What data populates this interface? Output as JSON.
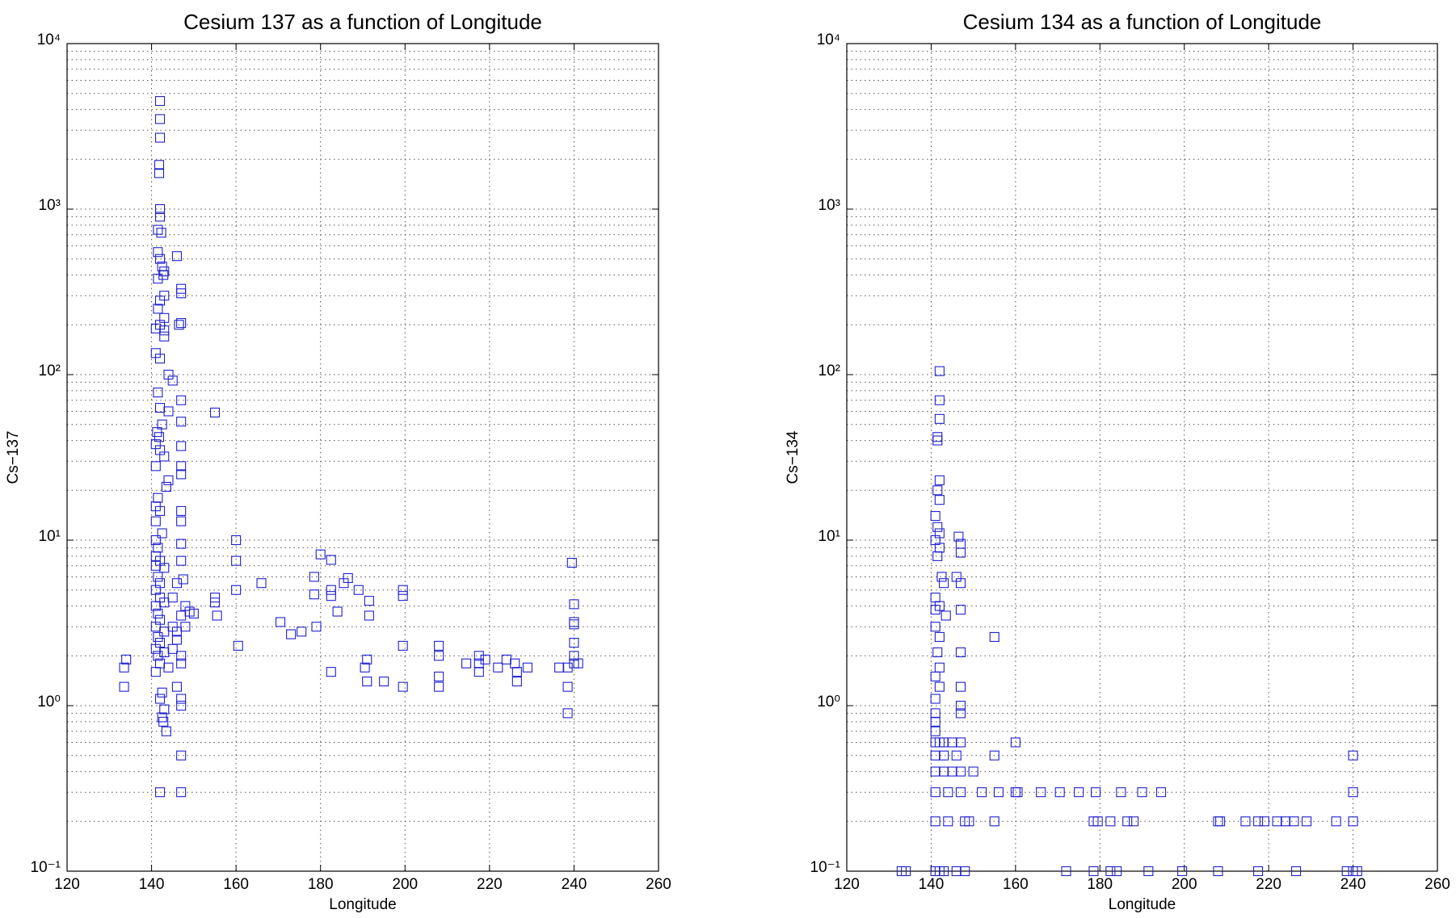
{
  "chart_data": [
    {
      "type": "scatter",
      "title": "Cesium 137 as a function of Longitude",
      "xlabel": "Longitude",
      "ylabel": "Cs−137",
      "color": "#2020d0",
      "log_y": true,
      "grid": true,
      "xlim": [
        120,
        260
      ],
      "xticks": [
        120,
        140,
        160,
        180,
        200,
        220,
        240,
        260
      ],
      "ylim": [
        0.1,
        10000
      ],
      "yticks": [
        {
          "value": 0.1,
          "label": "10⁻¹"
        },
        {
          "value": 1,
          "label": "10⁰"
        },
        {
          "value": 10,
          "label": "10¹"
        },
        {
          "value": 100,
          "label": "10²"
        },
        {
          "value": 1000,
          "label": "10³"
        },
        {
          "value": 10000,
          "label": "10⁴"
        }
      ],
      "x": [
        142,
        142,
        142,
        141.8,
        141.8,
        142,
        142,
        141.5,
        142.3,
        141.5,
        142,
        142.5,
        143,
        142.8,
        141.5,
        143,
        142,
        141.5,
        143,
        142,
        141,
        143,
        141,
        142,
        143,
        144,
        145,
        144,
        141.5,
        142,
        142.5,
        141.3,
        141.8,
        141,
        142,
        143,
        141,
        144,
        143.5,
        141.5,
        141,
        142,
        141,
        142.5,
        141,
        141.5,
        141,
        142,
        141,
        143,
        141.5,
        142,
        141,
        142,
        143,
        141,
        141.5,
        142,
        141,
        143,
        141.5,
        142,
        141,
        143,
        141.5,
        142,
        144,
        141,
        142.5,
        142,
        143,
        142.5,
        142.8,
        143.5,
        142,
        147,
        147,
        147,
        147,
        146,
        146,
        147,
        147,
        147,
        146.5,
        147,
        147,
        147,
        147,
        147,
        147,
        147,
        147,
        147,
        146,
        147.5,
        145,
        148,
        147,
        149,
        150,
        148,
        146,
        147,
        147,
        145,
        145,
        146,
        133.5,
        134,
        133.5,
        155,
        155,
        155,
        155.5,
        160,
        160,
        160,
        160.5,
        166,
        170.5,
        173,
        175.5,
        178.5,
        178.5,
        179,
        180,
        182.5,
        182.5,
        182.5,
        182.5,
        184,
        185.5,
        186.5,
        189,
        190.5,
        191,
        191,
        191.5,
        191.5,
        195,
        199.5,
        199.5,
        199.5,
        199.5,
        208,
        208,
        208,
        208,
        214.5,
        217.5,
        217.5,
        217.5,
        219,
        222,
        224,
        226,
        226.5,
        226.5,
        229,
        236.5,
        238.5,
        238.5,
        238.5,
        239.5,
        240,
        240,
        240,
        240,
        240,
        240,
        241
      ],
      "values": [
        4500,
        3500,
        2700,
        1850,
        1650,
        1000,
        900,
        750,
        720,
        550,
        500,
        450,
        420,
        400,
        380,
        300,
        280,
        250,
        220,
        200,
        190,
        185,
        135,
        125,
        170,
        100,
        92,
        60,
        78,
        63,
        50,
        45,
        42,
        38,
        35,
        32,
        28,
        23,
        21,
        18,
        16,
        15,
        13,
        11,
        10,
        9,
        8,
        7.5,
        7,
        6.8,
        6,
        5.5,
        5,
        4.5,
        4.2,
        4,
        3.6,
        3.3,
        3,
        2.8,
        2.6,
        2.4,
        2.2,
        2.1,
        2,
        1.8,
        1.7,
        1.6,
        1.2,
        1.1,
        0.95,
        0.85,
        0.8,
        0.7,
        0.3,
        0.3,
        0.5,
        1,
        1.1,
        1.3,
        520,
        330,
        310,
        205,
        200,
        70,
        52,
        37,
        28,
        25,
        15,
        13,
        9.5,
        7.5,
        5.5,
        5.8,
        4.5,
        4,
        3.5,
        3.7,
        3.6,
        3,
        2.5,
        2,
        1.8,
        2.2,
        3,
        2.8,
        1.7,
        1.9,
        1.3,
        59,
        4.5,
        4.2,
        3.5,
        10,
        7.5,
        5,
        2.3,
        5.5,
        3.2,
        2.7,
        2.8,
        6,
        4.7,
        3,
        8.2,
        7.6,
        5,
        4.6,
        1.6,
        3.7,
        5.5,
        5.9,
        5,
        1.7,
        1.9,
        1.4,
        4.3,
        3.5,
        1.4,
        5,
        4.6,
        2.3,
        1.3,
        2.3,
        2,
        1.5,
        1.3,
        1.8,
        2,
        1.8,
        1.6,
        1.9,
        1.7,
        1.9,
        1.8,
        1.6,
        1.4,
        1.7,
        1.7,
        1.7,
        1.3,
        0.9,
        7.3,
        4.1,
        3.2,
        3.1,
        2.4,
        2,
        1.8,
        1.8
      ]
    },
    {
      "type": "scatter",
      "title": "Cesium 134 as a function of Longitude",
      "xlabel": "Longitude",
      "ylabel": "Cs−134",
      "color": "#2020d0",
      "log_y": true,
      "grid": true,
      "xlim": [
        120,
        260
      ],
      "xticks": [
        120,
        140,
        160,
        180,
        200,
        220,
        240,
        260
      ],
      "ylim": [
        0.1,
        10000
      ],
      "yticks": [
        {
          "value": 0.1,
          "label": "10⁻¹"
        },
        {
          "value": 1,
          "label": "10⁰"
        },
        {
          "value": 10,
          "label": "10¹"
        },
        {
          "value": 100,
          "label": "10²"
        },
        {
          "value": 1000,
          "label": "10³"
        },
        {
          "value": 10000,
          "label": "10⁴"
        }
      ],
      "x": [
        142,
        142,
        142,
        141.5,
        141.5,
        142,
        141.5,
        142,
        141,
        141.5,
        142,
        141,
        142,
        141.5,
        142.5,
        143,
        141,
        142,
        141,
        143.5,
        141,
        142,
        141.5,
        142,
        141,
        142,
        141,
        141,
        141,
        141,
        141,
        142,
        143,
        145,
        147,
        147,
        147,
        147,
        147,
        147,
        147,
        146.5,
        147,
        147,
        146,
        141,
        143,
        146,
        141,
        143,
        145,
        147,
        150,
        155,
        155,
        160,
        141,
        144,
        147,
        152,
        156,
        160,
        160.5,
        166,
        170.5,
        175,
        179,
        185,
        190,
        194.5,
        141,
        144,
        148,
        149,
        155,
        178.5,
        179.5,
        182.5,
        186.5,
        188,
        208,
        208.5,
        214.5,
        217.5,
        219,
        222,
        224,
        226,
        229,
        236,
        240,
        240,
        240,
        133,
        134,
        141,
        142,
        143,
        146,
        148,
        172,
        178.5,
        182.5,
        184,
        191.5,
        199.5,
        208,
        217.5,
        226.5,
        238.5,
        240,
        241
      ],
      "values": [
        105,
        70,
        54,
        42,
        40,
        23,
        20,
        17.5,
        14,
        12,
        11,
        10,
        9,
        8,
        6,
        5.5,
        4.5,
        4,
        3.8,
        3.5,
        3,
        2.6,
        2.1,
        1.7,
        1.5,
        1.3,
        1.1,
        0.9,
        0.8,
        0.7,
        0.6,
        0.6,
        0.6,
        0.6,
        0.6,
        0.9,
        1,
        1.3,
        2.1,
        3.8,
        5.5,
        10.5,
        9.5,
        8.4,
        6,
        0.5,
        0.5,
        0.5,
        0.4,
        0.4,
        0.4,
        0.4,
        0.4,
        0.5,
        2.6,
        0.6,
        0.3,
        0.3,
        0.3,
        0.3,
        0.3,
        0.3,
        0.3,
        0.3,
        0.3,
        0.3,
        0.3,
        0.3,
        0.3,
        0.3,
        0.2,
        0.2,
        0.2,
        0.2,
        0.2,
        0.2,
        0.2,
        0.2,
        0.2,
        0.2,
        0.2,
        0.2,
        0.2,
        0.2,
        0.2,
        0.2,
        0.2,
        0.2,
        0.2,
        0.2,
        0.2,
        0.3,
        0.5,
        0.1,
        0.1,
        0.1,
        0.1,
        0.1,
        0.1,
        0.1,
        0.1,
        0.1,
        0.1,
        0.1,
        0.1,
        0.1,
        0.1,
        0.1,
        0.1,
        0.1,
        0.1,
        0.1
      ]
    }
  ]
}
